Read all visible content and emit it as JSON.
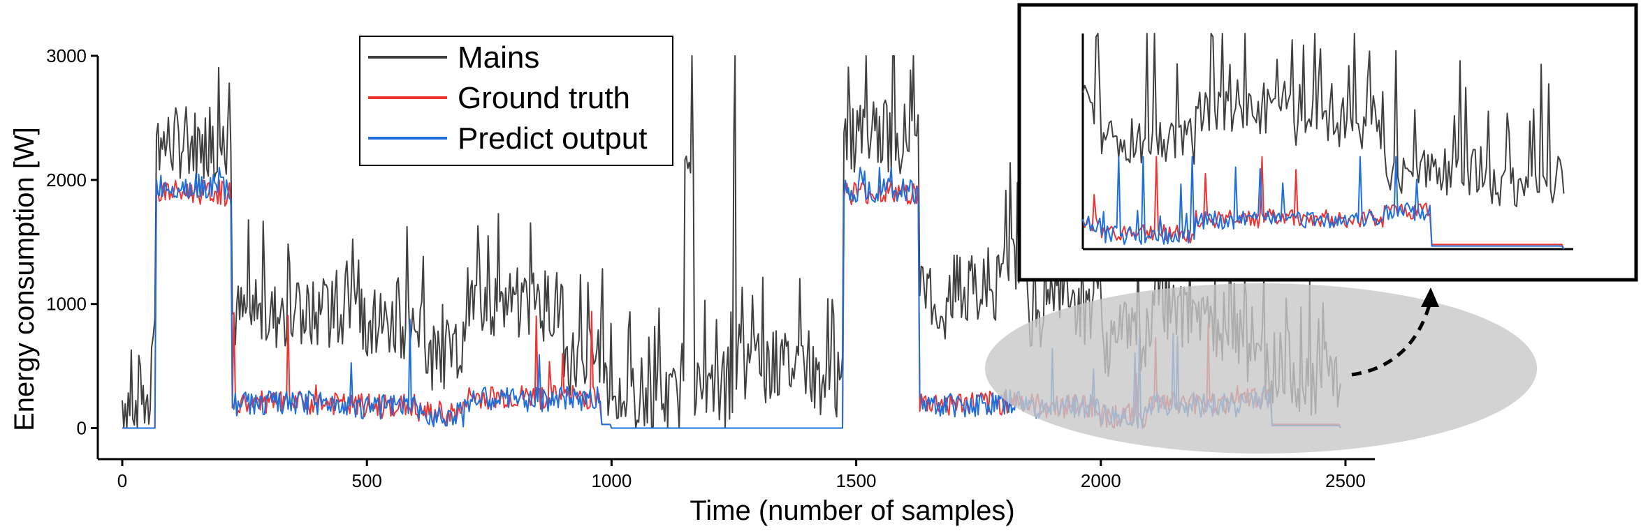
{
  "chart_data": {
    "type": "line",
    "xlabel": "Time (number of samples)",
    "ylabel": "Energy consumption [W]",
    "xlim": [
      -50,
      2560
    ],
    "ylim": [
      -250,
      3000
    ],
    "xticks": [
      0,
      500,
      1000,
      1500,
      2000,
      2500
    ],
    "yticks": [
      0,
      1000,
      2000,
      3000
    ],
    "legend_position": "top-left",
    "colors": {
      "mains": "#404040",
      "truth": "#ee3333",
      "predict": "#1e6fdc"
    },
    "series": [
      {
        "name": "Mains",
        "key": "mains"
      },
      {
        "name": "Ground truth",
        "key": "truth"
      },
      {
        "name": "Predict output",
        "key": "predict"
      }
    ],
    "segments": {
      "mains": [
        [
          0,
          230
        ],
        [
          40,
          240
        ],
        [
          60,
          900
        ],
        [
          70,
          2300
        ],
        [
          200,
          2300
        ],
        [
          225,
          900
        ],
        [
          450,
          850
        ],
        [
          600,
          600
        ],
        [
          700,
          1000
        ],
        [
          900,
          550
        ],
        [
          970,
          650
        ],
        [
          990,
          230
        ],
        [
          1100,
          220
        ],
        [
          1150,
          2350
        ],
        [
          1170,
          280
        ],
        [
          1250,
          2600
        ],
        [
          1255,
          450
        ],
        [
          1300,
          500
        ],
        [
          1400,
          400
        ],
        [
          1460,
          320
        ],
        [
          1475,
          2350
        ],
        [
          1620,
          2250
        ],
        [
          1630,
          950
        ],
        [
          1700,
          1100
        ],
        [
          1800,
          1400
        ],
        [
          1850,
          950
        ],
        [
          2000,
          700
        ],
        [
          2100,
          900
        ],
        [
          2200,
          800
        ],
        [
          2300,
          500
        ],
        [
          2400,
          400
        ],
        [
          2490,
          360
        ]
      ],
      "truth": [
        [
          0,
          0
        ],
        [
          60,
          0
        ],
        [
          70,
          1900
        ],
        [
          210,
          1880
        ],
        [
          225,
          200
        ],
        [
          450,
          180
        ],
        [
          600,
          120
        ],
        [
          700,
          250
        ],
        [
          900,
          250
        ],
        [
          980,
          30
        ],
        [
          1000,
          0
        ],
        [
          1460,
          0
        ],
        [
          1475,
          1900
        ],
        [
          1620,
          1880
        ],
        [
          1630,
          200
        ],
        [
          1800,
          220
        ],
        [
          1850,
          180
        ],
        [
          2000,
          100
        ],
        [
          2100,
          200
        ],
        [
          2300,
          250
        ],
        [
          2350,
          30
        ],
        [
          2490,
          0
        ]
      ],
      "predict": [
        [
          0,
          0
        ],
        [
          60,
          0
        ],
        [
          70,
          1950
        ],
        [
          210,
          1900
        ],
        [
          225,
          200
        ],
        [
          450,
          170
        ],
        [
          600,
          110
        ],
        [
          700,
          230
        ],
        [
          900,
          240
        ],
        [
          980,
          30
        ],
        [
          1000,
          0
        ],
        [
          1460,
          0
        ],
        [
          1475,
          1920
        ],
        [
          1620,
          1900
        ],
        [
          1630,
          190
        ],
        [
          1800,
          210
        ],
        [
          1850,
          170
        ],
        [
          2000,
          90
        ],
        [
          2100,
          190
        ],
        [
          2300,
          240
        ],
        [
          2350,
          20
        ],
        [
          2490,
          0
        ]
      ]
    }
  }
}
